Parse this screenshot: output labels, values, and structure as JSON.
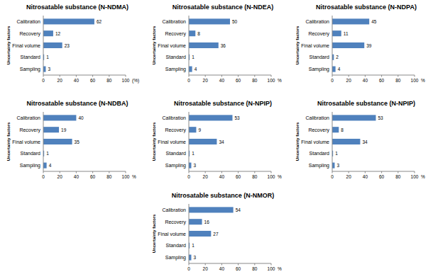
{
  "chart_data": [
    {
      "type": "bar",
      "orientation": "horizontal",
      "title": "Nitrosatable substance (N-NDMA)",
      "y_label": "Uncertainty factors",
      "x_label": "(%)",
      "categories": [
        "Calibration",
        "Recovery",
        "Final volume",
        "Standard",
        "Sampling"
      ],
      "values": [
        62,
        12,
        23,
        1,
        3
      ],
      "color": "#4f81bd",
      "xlim": [
        0,
        100
      ],
      "xticks": [
        0,
        20,
        40,
        60,
        80,
        100
      ],
      "data_labels": true,
      "grid": false
    },
    {
      "type": "bar",
      "orientation": "horizontal",
      "title": "Nitrosatable substance (N-NDEA)",
      "y_label": "Uncertainty factors",
      "x_label": "%",
      "categories": [
        "Calibration",
        "Recovery",
        "Final volume",
        "Standard",
        "Sampling"
      ],
      "values": [
        50,
        8,
        36,
        1,
        4
      ],
      "color": "#4f81bd",
      "xlim": [
        0,
        100
      ],
      "xticks": [
        0,
        20,
        40,
        60,
        80,
        100
      ],
      "data_labels": true,
      "grid": false
    },
    {
      "type": "bar",
      "orientation": "horizontal",
      "title": "Nitrosatable substance (N-NDPA)",
      "y_label": "Uncertainty factors",
      "x_label": "%",
      "categories": [
        "Calibration",
        "Recovery",
        "Final volume",
        "Standard",
        "Sampling"
      ],
      "values": [
        45,
        11,
        39,
        2,
        4
      ],
      "color": "#4f81bd",
      "xlim": [
        0,
        100
      ],
      "xticks": [
        0,
        20,
        40,
        60,
        80,
        100
      ],
      "data_labels": true,
      "grid": false
    },
    {
      "type": "bar",
      "orientation": "horizontal",
      "title": "Nitrosatable substance (N-NDBA)",
      "y_label": "Uncertainty factors",
      "x_label": "%",
      "categories": [
        "Calibration",
        "Recovery",
        "Final volume",
        "Standard",
        "Sampling"
      ],
      "values": [
        40,
        19,
        35,
        1,
        4
      ],
      "color": "#4f81bd",
      "xlim": [
        0,
        100
      ],
      "xticks": [
        0,
        20,
        40,
        60,
        80,
        100
      ],
      "data_labels": true,
      "grid": false
    },
    {
      "type": "bar",
      "orientation": "horizontal",
      "title": "Nitrosatable substance (N-NPIP)",
      "y_label": "Uncertainty factors",
      "x_label": "%",
      "categories": [
        "Calibration",
        "Recovery",
        "Final volume",
        "Standard",
        "Sampling"
      ],
      "values": [
        53,
        9,
        34,
        1,
        3
      ],
      "color": "#4f81bd",
      "xlim": [
        0,
        100
      ],
      "xticks": [
        0,
        20,
        40,
        60,
        80,
        100
      ],
      "data_labels": true,
      "grid": false
    },
    {
      "type": "bar",
      "orientation": "horizontal",
      "title": "Nitrosatable substance (N-NPIP)",
      "y_label": "Uncertainty factors",
      "x_label": "%",
      "categories": [
        "Calibration",
        "Recovery",
        "Final volume",
        "Standard",
        "Sampling"
      ],
      "values": [
        53,
        8,
        34,
        1,
        3
      ],
      "color": "#4f81bd",
      "xlim": [
        0,
        100
      ],
      "xticks": [
        0,
        20,
        40,
        60,
        80,
        100
      ],
      "data_labels": true,
      "grid": false
    },
    {
      "type": "bar",
      "orientation": "horizontal",
      "title": "Nitrosatable substance (N-NMOR)",
      "y_label": "Uncertainty factors",
      "x_label": "%",
      "categories": [
        "Calibration",
        "Recovery",
        "Final volume",
        "Standard",
        "Sampling"
      ],
      "values": [
        54,
        16,
        27,
        1,
        3
      ],
      "color": "#4f81bd",
      "xlim": [
        0,
        100
      ],
      "xticks": [
        0,
        20,
        40,
        60,
        80,
        100
      ],
      "data_labels": true,
      "grid": false
    }
  ]
}
